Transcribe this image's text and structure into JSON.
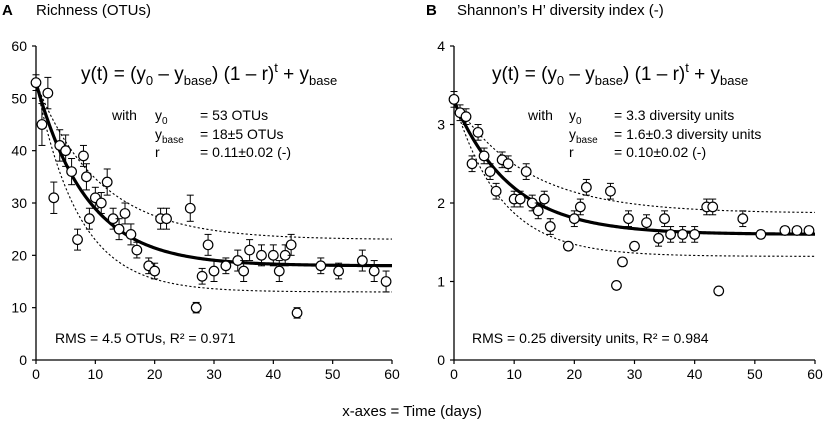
{
  "x_caption": "x-axes = Time (days)",
  "chart_data": [
    {
      "type": "scatter",
      "panel_letter": "A",
      "title": "Richness (OTUs)",
      "xlim": [
        0,
        60
      ],
      "ylim": [
        0,
        60
      ],
      "x_ticks": [
        0,
        10,
        20,
        30,
        40,
        50,
        60
      ],
      "y_ticks": [
        0,
        10,
        20,
        30,
        40,
        50,
        60
      ],
      "equation": {
        "lead": "y(t) = (y",
        "sub0": "0",
        "mid1": " – y",
        "subbase1": "base",
        "mid2": ") (1 – r)",
        "sup_t": "t",
        "mid3": " + y",
        "subbase2": "base"
      },
      "params": {
        "with_label": "with",
        "p1_sym": "y",
        "p1_sub": "0",
        "p1_val": "= 53 OTUs",
        "p2_sym": "y",
        "p2_sub": "base",
        "p2_val": "= 18±5 OTUs",
        "p3_sym": "r",
        "p3_val": "= 0.11±0.02 (-)"
      },
      "rms_text": "RMS = 4.5 OTUs, R² = 0.971",
      "model": {
        "y0": 53,
        "ybase": 18,
        "r": 0.11,
        "upper_base": 23,
        "upper_r": 0.09,
        "lower_base": 13,
        "lower_r": 0.13
      },
      "points": [
        {
          "x": 0,
          "y": 53,
          "err": 1.5
        },
        {
          "x": 1,
          "y": 45,
          "err": 4
        },
        {
          "x": 2,
          "y": 51,
          "err": 3
        },
        {
          "x": 3,
          "y": 31,
          "err": 3
        },
        {
          "x": 4,
          "y": 41,
          "err": 3
        },
        {
          "x": 5,
          "y": 40,
          "err": 3
        },
        {
          "x": 6,
          "y": 36,
          "err": 2.5
        },
        {
          "x": 7,
          "y": 23,
          "err": 2
        },
        {
          "x": 8,
          "y": 39,
          "err": 2
        },
        {
          "x": 8.5,
          "y": 35,
          "err": 2.5
        },
        {
          "x": 9,
          "y": 27,
          "err": 2
        },
        {
          "x": 10,
          "y": 31,
          "err": 2
        },
        {
          "x": 11,
          "y": 30,
          "err": 2
        },
        {
          "x": 12,
          "y": 34,
          "err": 2.5
        },
        {
          "x": 13,
          "y": 27,
          "err": 2
        },
        {
          "x": 14,
          "y": 25,
          "err": 2
        },
        {
          "x": 15,
          "y": 28,
          "err": 2
        },
        {
          "x": 16,
          "y": 24,
          "err": 2
        },
        {
          "x": 17,
          "y": 21,
          "err": 1.5
        },
        {
          "x": 19,
          "y": 18,
          "err": 1.5
        },
        {
          "x": 20,
          "y": 17,
          "err": 1.5
        },
        {
          "x": 21,
          "y": 27,
          "err": 2
        },
        {
          "x": 22,
          "y": 27,
          "err": 2
        },
        {
          "x": 26,
          "y": 29,
          "err": 2.5
        },
        {
          "x": 27,
          "y": 10,
          "err": 1
        },
        {
          "x": 28,
          "y": 16,
          "err": 1.5
        },
        {
          "x": 29,
          "y": 22,
          "err": 2
        },
        {
          "x": 30,
          "y": 17,
          "err": 2
        },
        {
          "x": 32,
          "y": 18,
          "err": 1.5
        },
        {
          "x": 34,
          "y": 19,
          "err": 2
        },
        {
          "x": 35,
          "y": 17,
          "err": 2
        },
        {
          "x": 36,
          "y": 21,
          "err": 2
        },
        {
          "x": 38,
          "y": 20,
          "err": 2
        },
        {
          "x": 40,
          "y": 20,
          "err": 2
        },
        {
          "x": 41,
          "y": 17,
          "err": 2
        },
        {
          "x": 42,
          "y": 20,
          "err": 2
        },
        {
          "x": 43,
          "y": 22,
          "err": 2
        },
        {
          "x": 44,
          "y": 9,
          "err": 1
        },
        {
          "x": 48,
          "y": 18,
          "err": 1.5
        },
        {
          "x": 51,
          "y": 17,
          "err": 1.5
        },
        {
          "x": 55,
          "y": 19,
          "err": 2
        },
        {
          "x": 57,
          "y": 17,
          "err": 2
        },
        {
          "x": 59,
          "y": 15,
          "err": 2
        }
      ]
    },
    {
      "type": "scatter",
      "panel_letter": "B",
      "title": "Shannon’s H’ diversity index (-)",
      "xlim": [
        0,
        60
      ],
      "ylim": [
        0,
        4
      ],
      "x_ticks": [
        0,
        10,
        20,
        30,
        40,
        50,
        60
      ],
      "y_ticks": [
        0,
        1,
        2,
        3,
        4
      ],
      "equation": {
        "lead": "y(t) = (y",
        "sub0": "0",
        "mid1": " – y",
        "subbase1": "base",
        "mid2": ") (1 – r)",
        "sup_t": "t",
        "mid3": " + y",
        "subbase2": "base"
      },
      "params": {
        "with_label": "with",
        "p1_sym": "y",
        "p1_sub": "0",
        "p1_val": "= 3.3 diversity units",
        "p2_sym": "y",
        "p2_sub": "base",
        "p2_val": "= 1.6±0.3 diversity units",
        "p3_sym": "r",
        "p3_val": "= 0.10±0.02 (-)"
      },
      "rms_text": "RMS = 0.25 diversity units, R² = 0.984",
      "model": {
        "y0": 3.3,
        "ybase": 1.6,
        "r": 0.1,
        "upper_base": 1.87,
        "upper_r": 0.08,
        "lower_base": 1.32,
        "lower_r": 0.12
      },
      "points": [
        {
          "x": 0,
          "y": 3.32,
          "err": 0.1
        },
        {
          "x": 1,
          "y": 3.15,
          "err": 0.1
        },
        {
          "x": 2,
          "y": 3.1,
          "err": 0.1
        },
        {
          "x": 3,
          "y": 2.5,
          "err": 0.1
        },
        {
          "x": 4,
          "y": 2.9,
          "err": 0.1
        },
        {
          "x": 5,
          "y": 2.6,
          "err": 0.1
        },
        {
          "x": 6,
          "y": 2.4,
          "err": 0.1
        },
        {
          "x": 7,
          "y": 2.15,
          "err": 0.1
        },
        {
          "x": 8,
          "y": 2.55,
          "err": 0.1
        },
        {
          "x": 9,
          "y": 2.5,
          "err": 0.1
        },
        {
          "x": 10,
          "y": 2.05,
          "err": 0.1
        },
        {
          "x": 11,
          "y": 2.05,
          "err": 0.1
        },
        {
          "x": 12,
          "y": 2.4,
          "err": 0.1
        },
        {
          "x": 13,
          "y": 2.0,
          "err": 0.1
        },
        {
          "x": 14,
          "y": 1.9,
          "err": 0.1
        },
        {
          "x": 15,
          "y": 2.05,
          "err": 0.1
        },
        {
          "x": 16,
          "y": 1.7,
          "err": 0.1
        },
        {
          "x": 19,
          "y": 1.45,
          "err": 0.05
        },
        {
          "x": 20,
          "y": 1.8,
          "err": 0.1
        },
        {
          "x": 21,
          "y": 1.95,
          "err": 0.1
        },
        {
          "x": 22,
          "y": 2.2,
          "err": 0.1
        },
        {
          "x": 26,
          "y": 2.15,
          "err": 0.1
        },
        {
          "x": 27,
          "y": 0.95,
          "err": 0.05
        },
        {
          "x": 28,
          "y": 1.25,
          "err": 0.05
        },
        {
          "x": 29,
          "y": 1.8,
          "err": 0.1
        },
        {
          "x": 30,
          "y": 1.45,
          "err": 0.05
        },
        {
          "x": 32,
          "y": 1.75,
          "err": 0.1
        },
        {
          "x": 34,
          "y": 1.55,
          "err": 0.1
        },
        {
          "x": 35,
          "y": 1.8,
          "err": 0.1
        },
        {
          "x": 36,
          "y": 1.6,
          "err": 0.1
        },
        {
          "x": 38,
          "y": 1.6,
          "err": 0.1
        },
        {
          "x": 40,
          "y": 1.6,
          "err": 0.1
        },
        {
          "x": 42,
          "y": 1.95,
          "err": 0.1
        },
        {
          "x": 43,
          "y": 1.95,
          "err": 0.1
        },
        {
          "x": 44,
          "y": 0.88,
          "err": 0.05
        },
        {
          "x": 48,
          "y": 1.8,
          "err": 0.1
        },
        {
          "x": 51,
          "y": 1.6,
          "err": 0.05
        },
        {
          "x": 55,
          "y": 1.65,
          "err": 0.05
        },
        {
          "x": 57,
          "y": 1.65,
          "err": 0.05
        },
        {
          "x": 59,
          "y": 1.65,
          "err": 0.05
        }
      ]
    }
  ]
}
